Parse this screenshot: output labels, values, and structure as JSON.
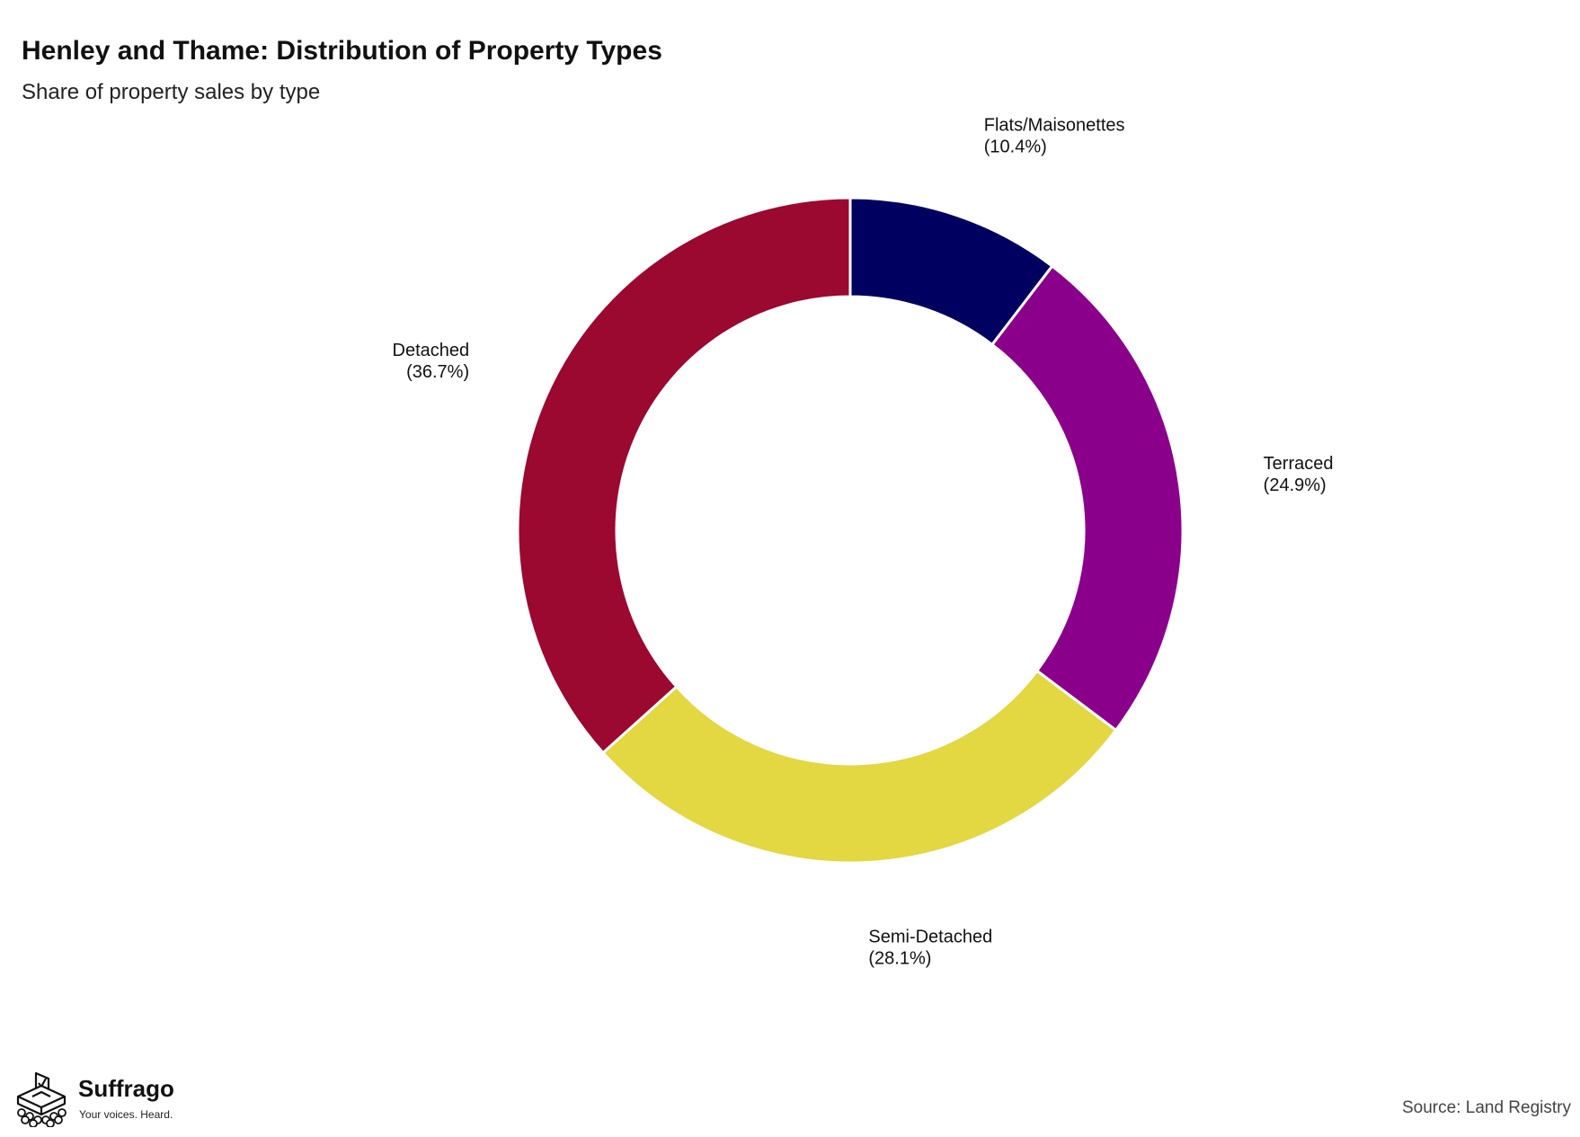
{
  "chart_data": {
    "type": "pie",
    "title": "Henley and Thame: Distribution of Property Types",
    "subtitle": "Share of property sales by type",
    "donut": true,
    "slices": [
      {
        "label": "Flats/Maisonettes",
        "value": 10.4,
        "value_label": "(10.4%)",
        "color": "#000060"
      },
      {
        "label": "Terraced",
        "value": 24.9,
        "value_label": "(24.9%)",
        "color": "#8b008b"
      },
      {
        "label": "Semi-Detached",
        "value": 28.1,
        "value_label": "(28.1%)",
        "color": "#e3d742"
      },
      {
        "label": "Detached",
        "value": 36.7,
        "value_label": "(36.7%)",
        "color": "#9b0830"
      }
    ],
    "legend": "none",
    "grid": false
  },
  "branding": {
    "logo_name": "Suffrago",
    "logo_tagline": "Your voices. Heard."
  },
  "footer": {
    "source": "Source: Land Registry"
  }
}
